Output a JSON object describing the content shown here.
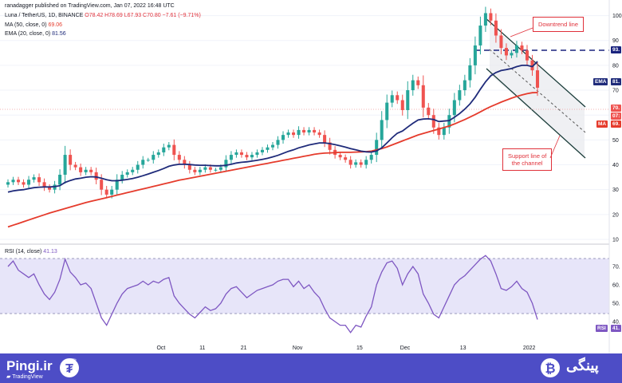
{
  "header": {
    "publisher": "ranadagger published on TradingView.com, Jan 07, 2022 16:48 UTC",
    "symbol": "Luna / TetherUS, 1D, BINANCE",
    "ohlc": "O78.42  H78.69  L67.93  C70.80  −7.61 (−9.71%)",
    "ma_label": "MA (50, close, 0)",
    "ma_value": "69.06",
    "ema_label": "EMA (20, close, 0)",
    "ema_value": "81.56",
    "rsi_label": "RSI (14, close)",
    "rsi_value": "41.13"
  },
  "price_axis": {
    "ticks": [
      "100",
      "90",
      "80",
      "70",
      "60",
      "50",
      "40",
      "30",
      "20",
      "10"
    ],
    "labels": {
      "resistance": "93.",
      "ema": "81.",
      "price": "70.",
      "countdown": "07:",
      "ma": "69."
    },
    "tags": {
      "ema": "EMA",
      "ma": "MA"
    }
  },
  "rsi_axis": {
    "ticks": [
      "70.",
      "60.",
      "50.",
      "40."
    ],
    "tag": "RSI",
    "value": "41."
  },
  "time_axis": [
    "Oct",
    "11",
    "21",
    "Nov",
    "15",
    "Dec",
    "13",
    "2022"
  ],
  "annotations": {
    "downtrend": "Downtrend line",
    "support": "Support line of\nthe channel"
  },
  "branding": {
    "left": "Pingi.ir",
    "right": "پینگی",
    "tradingview": "TradingView"
  },
  "colors": {
    "up": "#26a69a",
    "down": "#ef5350",
    "ema": "#1f2b7a",
    "ma": "#e53b2c",
    "rsi": "#7e57c2",
    "resistance": "#1a237e",
    "footer": "#4d4dc6"
  },
  "chart_data": {
    "type": "line",
    "title": "Luna / TetherUS, 1D, BINANCE",
    "ylim": [
      10,
      105
    ],
    "rsi_ylim": [
      30,
      80
    ],
    "resistance_level": 93,
    "close": [
      33,
      34,
      33,
      32,
      34,
      35,
      33,
      31,
      30,
      32,
      36,
      44,
      40,
      39,
      37,
      38,
      37,
      34,
      30,
      28,
      30,
      34,
      36,
      37,
      38,
      40,
      42,
      42,
      44,
      45,
      47,
      48,
      44,
      42,
      40,
      38,
      37,
      38,
      39,
      38,
      38,
      39,
      42,
      44,
      45,
      44,
      43,
      44,
      45,
      46,
      47,
      48,
      50,
      52,
      53,
      52,
      54,
      53,
      54,
      53,
      52,
      49,
      46,
      44,
      43,
      42,
      40,
      41,
      40,
      42,
      44,
      50,
      58,
      65,
      68,
      66,
      62,
      70,
      74,
      72,
      63,
      60,
      55,
      52,
      55,
      60,
      66,
      70,
      74,
      80,
      88,
      96,
      101,
      98,
      92,
      87,
      84,
      85,
      88,
      86,
      82,
      78,
      71
    ],
    "ema20": [
      29,
      29.5,
      29.8,
      30,
      30.4,
      30.8,
      31,
      31.1,
      31.1,
      31.2,
      31.6,
      32.9,
      33.7,
      34.3,
      34.6,
      35,
      35.2,
      35.1,
      34.6,
      34,
      33.6,
      33.6,
      33.8,
      34.1,
      34.5,
      35,
      35.6,
      36.3,
      37,
      37.7,
      38.5,
      39.4,
      39.9,
      40.2,
      40.2,
      40.1,
      39.9,
      39.8,
      39.8,
      39.7,
      39.6,
      39.6,
      39.8,
      40.2,
      40.7,
      41,
      41.2,
      41.5,
      41.8,
      42.2,
      42.6,
      43.2,
      43.8,
      44.6,
      45.4,
      46,
      46.8,
      47.4,
      48,
      48.4,
      48.8,
      48.8,
      48.5,
      48.1,
      47.6,
      47.1,
      46.5,
      46,
      45.5,
      45.2,
      45.1,
      45.6,
      46.8,
      48.8,
      50.9,
      52.7,
      53.6,
      55.2,
      56.7,
      58,
      58.4,
      58.5,
      58.2,
      57.4,
      57.6,
      57.8,
      59.1,
      60.6,
      62.4,
      64.5,
      67.2,
      70.4,
      73.4,
      75.8,
      77.1,
      77.9,
      78.3,
      78.7,
      79.5,
      80,
      80,
      79.5,
      81.56
    ],
    "ma50": [
      15,
      15.7,
      16.4,
      17.1,
      17.8,
      18.5,
      19.2,
      19.9,
      20.6,
      21.2,
      21.8,
      22.4,
      23,
      23.6,
      24.2,
      24.8,
      25.3,
      25.8,
      26.3,
      26.8,
      27.3,
      27.8,
      28.3,
      28.8,
      29.3,
      29.8,
      30.3,
      30.8,
      31.3,
      31.8,
      32.3,
      32.8,
      33.3,
      33.8,
      34.2,
      34.6,
      35,
      35.4,
      35.8,
      36.2,
      36.6,
      37,
      37.4,
      37.8,
      38.2,
      38.6,
      39,
      39.4,
      39.8,
      40.2,
      40.6,
      41,
      41.4,
      41.8,
      42.2,
      42.6,
      43,
      43.4,
      43.8,
      44.2,
      44.5,
      44.7,
      44.8,
      44.9,
      45,
      45,
      45,
      45.1,
      45.2,
      45.3,
      45.5,
      46,
      46.5,
      47.2,
      48,
      48.8,
      49.6,
      50.4,
      51.2,
      52,
      52.6,
      53.2,
      53.8,
      54.4,
      55,
      55.6,
      56.4,
      57.3,
      58.2,
      59.2,
      60.2,
      61.3,
      62.4,
      63.4,
      64.3,
      65.2,
      66,
      66.8,
      67.5,
      68.1,
      68.6,
      69,
      69.06
    ],
    "rsi": [
      70,
      73,
      68,
      66,
      64,
      66,
      60,
      55,
      52,
      56,
      63,
      74,
      67,
      64,
      60,
      61,
      58,
      50,
      42,
      38,
      44,
      50,
      55,
      58,
      59,
      60,
      62,
      60,
      62,
      61,
      63,
      64,
      54,
      50,
      47,
      44,
      42,
      45,
      48,
      46,
      47,
      50,
      55,
      58,
      59,
      56,
      53,
      55,
      57,
      58,
      59,
      60,
      62,
      63,
      63,
      59,
      62,
      58,
      60,
      56,
      53,
      47,
      42,
      40,
      38,
      38,
      34,
      38,
      37,
      43,
      48,
      60,
      67,
      72,
      73,
      69,
      60,
      66,
      70,
      66,
      55,
      50,
      44,
      42,
      48,
      54,
      60,
      63,
      65,
      68,
      71,
      74,
      76,
      73,
      66,
      58,
      57,
      59,
      62,
      58,
      56,
      50,
      41.13
    ]
  }
}
